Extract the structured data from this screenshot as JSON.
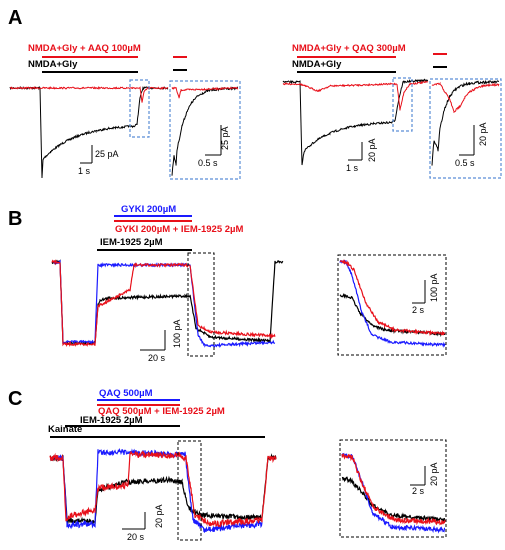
{
  "colors": {
    "red": "#e8101a",
    "black": "#000000",
    "blue": "#1a1aff",
    "box_blue": "#5b8ed6"
  },
  "panels": {
    "A": {
      "letter": "A",
      "left": {
        "drug_label": "NMDA+Gly + AAQ 100µM",
        "control_label": "NMDA+Gly",
        "scale_y": "25 pA",
        "scale_x": "1 s",
        "inset_scale_y": "25 pA",
        "inset_scale_x": "0.5 s"
      },
      "right": {
        "drug_label": "NMDA+Gly + QAQ 300µM",
        "control_label": "NMDA+Gly",
        "scale_y": "20 pA",
        "scale_x": "1 s",
        "inset_scale_y": "20 pA",
        "inset_scale_x": "0.5 s"
      }
    },
    "B": {
      "letter": "B",
      "label_blue": "GYKI 200µM",
      "label_red": "GYKI 200µM + IEM-1925 2µM",
      "label_black": "IEM-1925 2µM",
      "scale_y": "100 pA",
      "scale_x": "20 s",
      "inset_scale_y": "100 pA",
      "inset_scale_x": "2 s"
    },
    "C": {
      "letter": "C",
      "label_blue": "QAQ 500µM",
      "label_red": "QAQ 500µM + IEM-1925 2µM",
      "label_black": "IEM-1925 2µM",
      "label_kainate": "Kainate",
      "scale_y": "20 pA",
      "scale_x": "20 s",
      "inset_scale_y": "20 pA",
      "inset_scale_x": "2 s"
    }
  },
  "chart_data": [
    {
      "type": "line",
      "panel": "A-left",
      "series": [
        {
          "name": "NMDA+Gly + AAQ 100µM"
        },
        {
          "name": "NMDA+Gly"
        }
      ]
    },
    {
      "type": "line",
      "panel": "A-right",
      "series": [
        {
          "name": "NMDA+Gly + QAQ 300µM"
        },
        {
          "name": "NMDA+Gly"
        }
      ]
    },
    {
      "type": "line",
      "panel": "B",
      "series": [
        {
          "name": "GYKI 200µM"
        },
        {
          "name": "GYKI 200µM + IEM-1925 2µM"
        },
        {
          "name": "IEM-1925 2µM"
        }
      ]
    },
    {
      "type": "line",
      "panel": "C",
      "series": [
        {
          "name": "QAQ 500µM"
        },
        {
          "name": "QAQ 500µM + IEM-1925 2µM"
        },
        {
          "name": "IEM-1925 2µM"
        }
      ]
    }
  ]
}
